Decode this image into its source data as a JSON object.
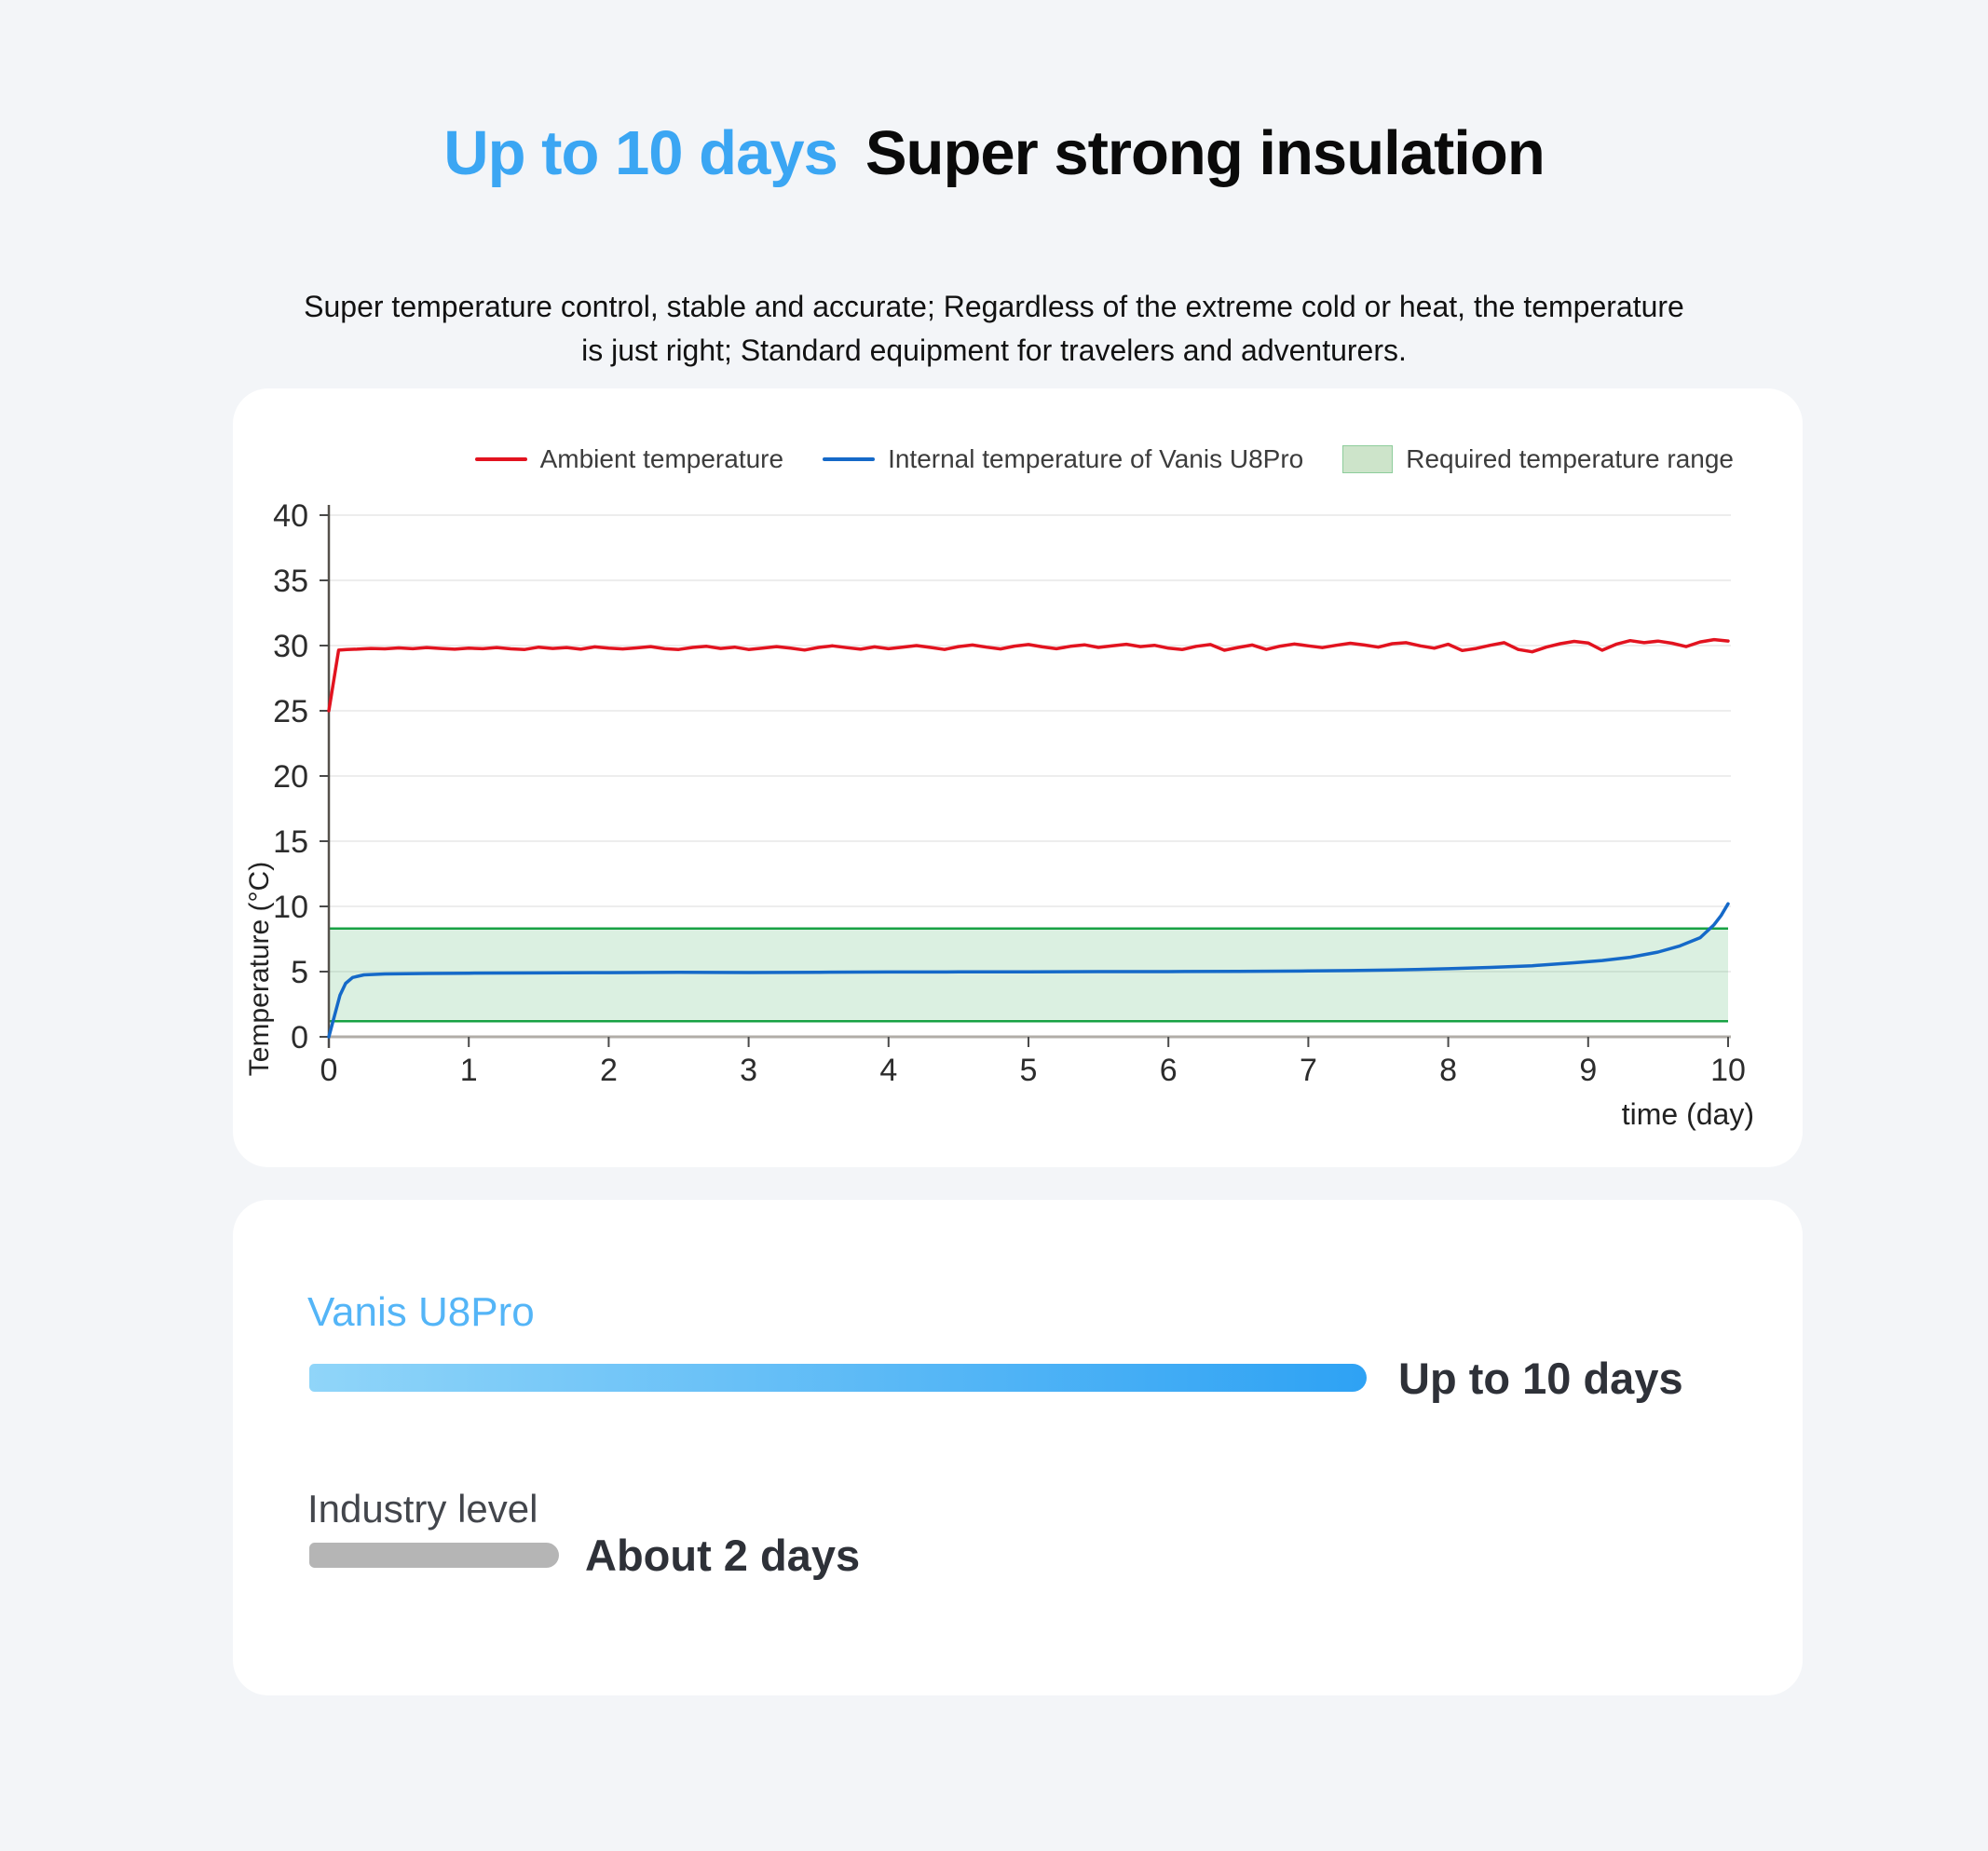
{
  "header": {
    "title_highlight": "Up to 10 days",
    "title_rest": "Super strong insulation",
    "subtitle_line1": "Super temperature control, stable and accurate; Regardless of the extreme cold or heat, the temperature",
    "subtitle_line2": "is just right; Standard equipment for travelers and adventurers."
  },
  "colors": {
    "background": "#f3f5f8",
    "card": "#ffffff",
    "title_accent": "#3ba6f3",
    "product_bar_start": "#90d5f9",
    "product_bar_end": "#2ea2f4",
    "industry_bar": "#b5b5b5"
  },
  "chart_data": {
    "type": "line",
    "xlabel": "time (day)",
    "ylabel": "Temperature (°C)",
    "xlim": [
      0,
      10
    ],
    "ylim": [
      0,
      40
    ],
    "xticks": [
      0,
      1,
      2,
      3,
      4,
      5,
      6,
      7,
      8,
      9,
      10
    ],
    "yticks": [
      0,
      5,
      10,
      15,
      20,
      25,
      30,
      35,
      40
    ],
    "grid": true,
    "legend_position": "top-right",
    "band": {
      "label": "Required temperature range",
      "range": [
        1.2,
        8.3
      ],
      "fill": "#22a046",
      "fill_opacity": 0.16,
      "border": "#18a244",
      "swatch_fill": "#cde4ca"
    },
    "series": [
      {
        "name": "Ambient temperature",
        "color": "#e2131f",
        "head": [
          [
            0,
            25
          ],
          [
            0.07,
            29.65
          ],
          [
            0.13,
            29.7
          ]
        ],
        "x0": 0.2,
        "dx": 0.1,
        "values": [
          29.72,
          29.78,
          29.75,
          29.82,
          29.76,
          29.85,
          29.78,
          29.72,
          29.8,
          29.76,
          29.85,
          29.75,
          29.7,
          29.88,
          29.78,
          29.85,
          29.72,
          29.9,
          29.8,
          29.74,
          29.82,
          29.92,
          29.76,
          29.7,
          29.86,
          29.94,
          29.78,
          29.88,
          29.7,
          29.8,
          29.92,
          29.8,
          29.66,
          29.86,
          29.98,
          29.84,
          29.72,
          29.9,
          29.76,
          29.88,
          30.0,
          29.86,
          29.7,
          29.92,
          30.04,
          29.88,
          29.74,
          29.96,
          30.08,
          29.9,
          29.76,
          29.94,
          30.06,
          29.86,
          29.98,
          30.1,
          29.92,
          30.02,
          29.8,
          29.7,
          29.94,
          30.08,
          29.64,
          29.86,
          30.04,
          29.7,
          29.96,
          30.12,
          29.98,
          29.84,
          30.02,
          30.18,
          30.04,
          29.88,
          30.14,
          30.22,
          29.98,
          29.8,
          30.1,
          29.62,
          29.78,
          30.02,
          30.22,
          29.7,
          29.52,
          29.88,
          30.14,
          30.32,
          30.2,
          29.64,
          30.1,
          30.38,
          30.22,
          30.34,
          30.18,
          29.92,
          30.28,
          30.46,
          30.35
        ]
      },
      {
        "name": "Internal temperature of Vanis U8Pro",
        "color": "#1569c8",
        "points": [
          [
            0,
            0
          ],
          [
            0.04,
            1.6
          ],
          [
            0.08,
            3.2
          ],
          [
            0.12,
            4.1
          ],
          [
            0.17,
            4.55
          ],
          [
            0.25,
            4.75
          ],
          [
            0.4,
            4.82
          ],
          [
            0.7,
            4.86
          ],
          [
            1,
            4.88
          ],
          [
            1.5,
            4.9
          ],
          [
            2,
            4.92
          ],
          [
            2.5,
            4.95
          ],
          [
            3,
            4.93
          ],
          [
            3.5,
            4.95
          ],
          [
            4,
            4.97
          ],
          [
            4.5,
            4.98
          ],
          [
            5,
            4.98
          ],
          [
            5.5,
            5.0
          ],
          [
            6,
            5.0
          ],
          [
            6.5,
            5.02
          ],
          [
            7,
            5.05
          ],
          [
            7.3,
            5.08
          ],
          [
            7.6,
            5.12
          ],
          [
            8,
            5.22
          ],
          [
            8.3,
            5.32
          ],
          [
            8.6,
            5.45
          ],
          [
            8.9,
            5.68
          ],
          [
            9.1,
            5.85
          ],
          [
            9.3,
            6.1
          ],
          [
            9.5,
            6.5
          ],
          [
            9.65,
            6.95
          ],
          [
            9.8,
            7.6
          ],
          [
            9.9,
            8.6
          ],
          [
            9.95,
            9.3
          ],
          [
            10,
            10.2
          ]
        ]
      }
    ]
  },
  "comparison": {
    "product_label": "Vanis U8Pro",
    "product_value": "Up to 10 days",
    "industry_label": "Industry level",
    "industry_value": "About 2 days"
  }
}
